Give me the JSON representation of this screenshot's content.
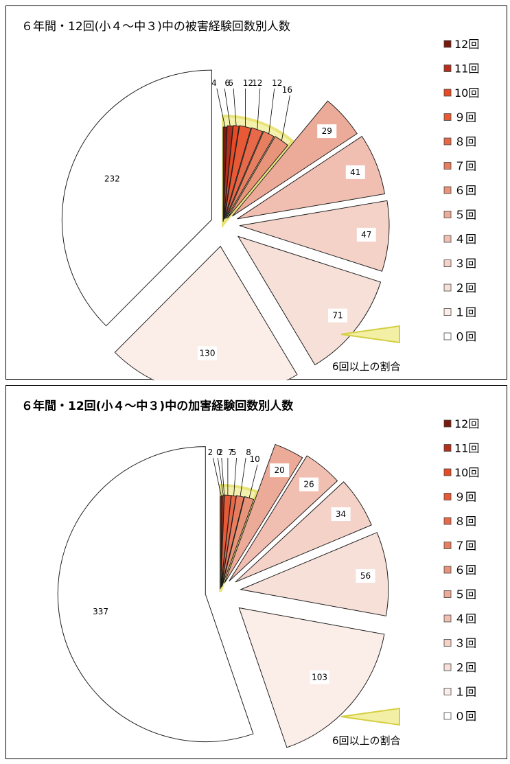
{
  "chart_data": [
    {
      "type": "pie",
      "title": "６年間・12回(小４～中３)中の被害経験回数別人数",
      "categories": [
        "12回",
        "11回",
        "10回",
        "９回",
        "８回",
        "７回",
        "６回",
        "５回",
        "４回",
        "３回",
        "２回",
        "１回",
        "０回"
      ],
      "values": [
        4,
        6,
        6,
        12,
        12,
        12,
        16,
        29,
        41,
        47,
        71,
        130,
        232
      ],
      "colors": [
        "#7a1a0f",
        "#b2301d",
        "#e84a24",
        "#e85a36",
        "#e8684a",
        "#e87e60",
        "#e8947a",
        "#ecab98",
        "#f0bfb2",
        "#f4d2c8",
        "#f7e0d8",
        "#fbeee9",
        "#ffffff"
      ],
      "legend_position": "right",
      "annotation": "6回以上の割合"
    },
    {
      "type": "pie",
      "title": "６年間・12回(小４～中３)中の加害経験回数別人数",
      "categories": [
        "12回",
        "11回",
        "10回",
        "９回",
        "８回",
        "７回",
        "６回",
        "５回",
        "４回",
        "３回",
        "２回",
        "１回",
        "０回"
      ],
      "values": [
        2,
        2,
        0,
        7,
        5,
        8,
        10,
        20,
        26,
        34,
        56,
        103,
        337
      ],
      "colors": [
        "#7a1a0f",
        "#b2301d",
        "#e84a24",
        "#e85a36",
        "#e8684a",
        "#e87e60",
        "#e8947a",
        "#ecab98",
        "#f0bfb2",
        "#f4d2c8",
        "#f7e0d8",
        "#fbeee9",
        "#ffffff"
      ],
      "legend_position": "right",
      "annotation": "6回以上の割合"
    }
  ]
}
